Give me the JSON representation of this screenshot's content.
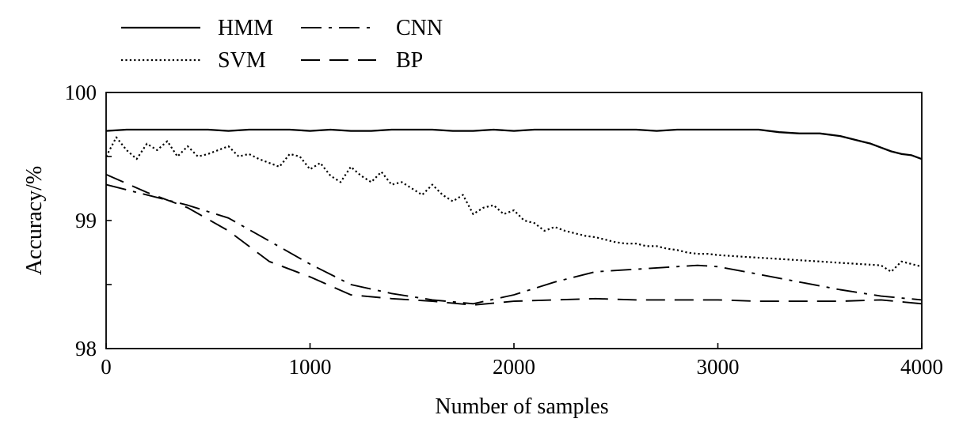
{
  "chart_data": {
    "type": "line",
    "title": "",
    "xlabel": "Number of samples",
    "ylabel": "Accuracy/%",
    "xlim": [
      0,
      4000
    ],
    "ylim": [
      98,
      100
    ],
    "xticks": [
      0,
      1000,
      2000,
      3000,
      4000
    ],
    "yticks": [
      98,
      98.5,
      99,
      99.5,
      100
    ],
    "ytick_labels": [
      "98",
      "",
      "99",
      "",
      "100"
    ],
    "grid": false,
    "legend": "top-left, outside plot",
    "series": [
      {
        "name": "HMM",
        "style": "solid",
        "x": [
          0,
          100,
          200,
          300,
          400,
          500,
          600,
          700,
          800,
          900,
          1000,
          1100,
          1200,
          1300,
          1400,
          1500,
          1600,
          1700,
          1800,
          1900,
          2000,
          2100,
          2200,
          2300,
          2400,
          2500,
          2600,
          2700,
          2800,
          2900,
          3000,
          3100,
          3200,
          3300,
          3400,
          3500,
          3600,
          3700,
          3750,
          3800,
          3850,
          3900,
          3950,
          4000
        ],
        "values": [
          99.7,
          99.71,
          99.71,
          99.71,
          99.71,
          99.71,
          99.7,
          99.71,
          99.71,
          99.71,
          99.7,
          99.71,
          99.7,
          99.7,
          99.71,
          99.71,
          99.71,
          99.7,
          99.7,
          99.71,
          99.7,
          99.71,
          99.71,
          99.71,
          99.71,
          99.71,
          99.71,
          99.7,
          99.71,
          99.71,
          99.71,
          99.71,
          99.71,
          99.69,
          99.68,
          99.68,
          99.66,
          99.62,
          99.6,
          99.57,
          99.54,
          99.52,
          99.51,
          99.48
        ]
      },
      {
        "name": "SVM",
        "style": "dotted",
        "x": [
          0,
          50,
          100,
          150,
          200,
          250,
          300,
          350,
          400,
          450,
          500,
          550,
          600,
          650,
          700,
          750,
          800,
          850,
          900,
          950,
          1000,
          1050,
          1100,
          1150,
          1200,
          1250,
          1300,
          1350,
          1400,
          1450,
          1500,
          1550,
          1600,
          1650,
          1700,
          1750,
          1800,
          1850,
          1900,
          1950,
          2000,
          2050,
          2100,
          2150,
          2200,
          2250,
          2300,
          2350,
          2400,
          2450,
          2500,
          2550,
          2600,
          2650,
          2700,
          2750,
          2800,
          2850,
          2900,
          2950,
          3000,
          3100,
          3200,
          3300,
          3400,
          3500,
          3600,
          3700,
          3800,
          3850,
          3900,
          4000
        ],
        "values": [
          99.5,
          99.65,
          99.55,
          99.48,
          99.6,
          99.55,
          99.62,
          99.5,
          99.58,
          99.5,
          99.52,
          99.55,
          99.58,
          99.5,
          99.52,
          99.48,
          99.45,
          99.42,
          99.52,
          99.5,
          99.4,
          99.45,
          99.35,
          99.3,
          99.42,
          99.35,
          99.3,
          99.38,
          99.28,
          99.3,
          99.25,
          99.2,
          99.28,
          99.2,
          99.15,
          99.2,
          99.05,
          99.1,
          99.12,
          99.05,
          99.08,
          99.0,
          98.98,
          98.92,
          98.95,
          98.92,
          98.9,
          98.88,
          98.87,
          98.85,
          98.83,
          98.82,
          98.82,
          98.8,
          98.8,
          98.78,
          98.77,
          98.75,
          98.74,
          98.74,
          98.73,
          98.72,
          98.71,
          98.7,
          98.69,
          98.68,
          98.67,
          98.66,
          98.65,
          98.6,
          98.68,
          98.64
        ]
      },
      {
        "name": "CNN",
        "style": "dash-dot",
        "x": [
          0,
          200,
          400,
          600,
          800,
          1000,
          1200,
          1400,
          1600,
          1800,
          2000,
          2200,
          2400,
          2600,
          2800,
          2900,
          3000,
          3200,
          3400,
          3600,
          3800,
          4000
        ],
        "values": [
          99.28,
          99.2,
          99.12,
          99.02,
          98.84,
          98.66,
          98.5,
          98.43,
          98.38,
          98.35,
          98.42,
          98.52,
          98.6,
          98.62,
          98.64,
          98.65,
          98.64,
          98.58,
          98.52,
          98.46,
          98.41,
          98.38
        ]
      },
      {
        "name": "BP",
        "style": "dashed",
        "x": [
          0,
          200,
          400,
          600,
          800,
          1000,
          1200,
          1400,
          1600,
          1800,
          2000,
          2200,
          2400,
          2600,
          2800,
          3000,
          3200,
          3400,
          3600,
          3800,
          4000
        ],
        "values": [
          99.36,
          99.22,
          99.1,
          98.92,
          98.68,
          98.56,
          98.42,
          98.39,
          98.37,
          98.34,
          98.37,
          98.38,
          98.39,
          98.38,
          98.38,
          98.38,
          98.37,
          98.37,
          98.37,
          98.38,
          98.35
        ]
      }
    ]
  }
}
